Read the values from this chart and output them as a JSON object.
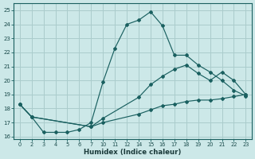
{
  "xlabel": "Humidex (Indice chaleur)",
  "background_color": "#cce8e8",
  "grid_color": "#aacccc",
  "line_color": "#1a6060",
  "ylim": [
    15.8,
    25.5
  ],
  "xtick_labels": [
    "0",
    "2",
    "3",
    "4",
    "5",
    "6",
    "7",
    "10",
    "11",
    "12",
    "14",
    "15",
    "16",
    "17",
    "18",
    "19",
    "20",
    "21",
    "22",
    "23"
  ],
  "yticks": [
    16,
    17,
    18,
    19,
    20,
    21,
    22,
    23,
    24,
    25
  ],
  "lines": [
    {
      "xi": [
        0,
        1,
        2,
        3,
        4,
        5,
        6,
        7,
        8,
        9,
        10,
        11,
        12,
        13,
        14,
        15,
        16,
        17,
        18,
        19
      ],
      "y": [
        18.3,
        17.4,
        16.3,
        16.3,
        16.3,
        16.5,
        17.0,
        19.9,
        22.3,
        24.0,
        24.3,
        24.9,
        23.9,
        21.8,
        21.8,
        21.1,
        20.6,
        20.0,
        19.3,
        18.9
      ]
    },
    {
      "xi": [
        0,
        1,
        6,
        7,
        10,
        11,
        12,
        13,
        14,
        15,
        16,
        17,
        18,
        19
      ],
      "y": [
        18.3,
        17.4,
        16.7,
        17.3,
        18.8,
        19.7,
        20.3,
        20.8,
        21.1,
        20.5,
        20.0,
        20.6,
        20.0,
        19.0
      ]
    },
    {
      "xi": [
        0,
        1,
        6,
        7,
        10,
        11,
        12,
        13,
        14,
        15,
        16,
        17,
        18,
        19
      ],
      "y": [
        18.3,
        17.4,
        16.7,
        17.0,
        17.6,
        17.9,
        18.2,
        18.3,
        18.5,
        18.6,
        18.6,
        18.7,
        18.85,
        19.0
      ]
    }
  ]
}
